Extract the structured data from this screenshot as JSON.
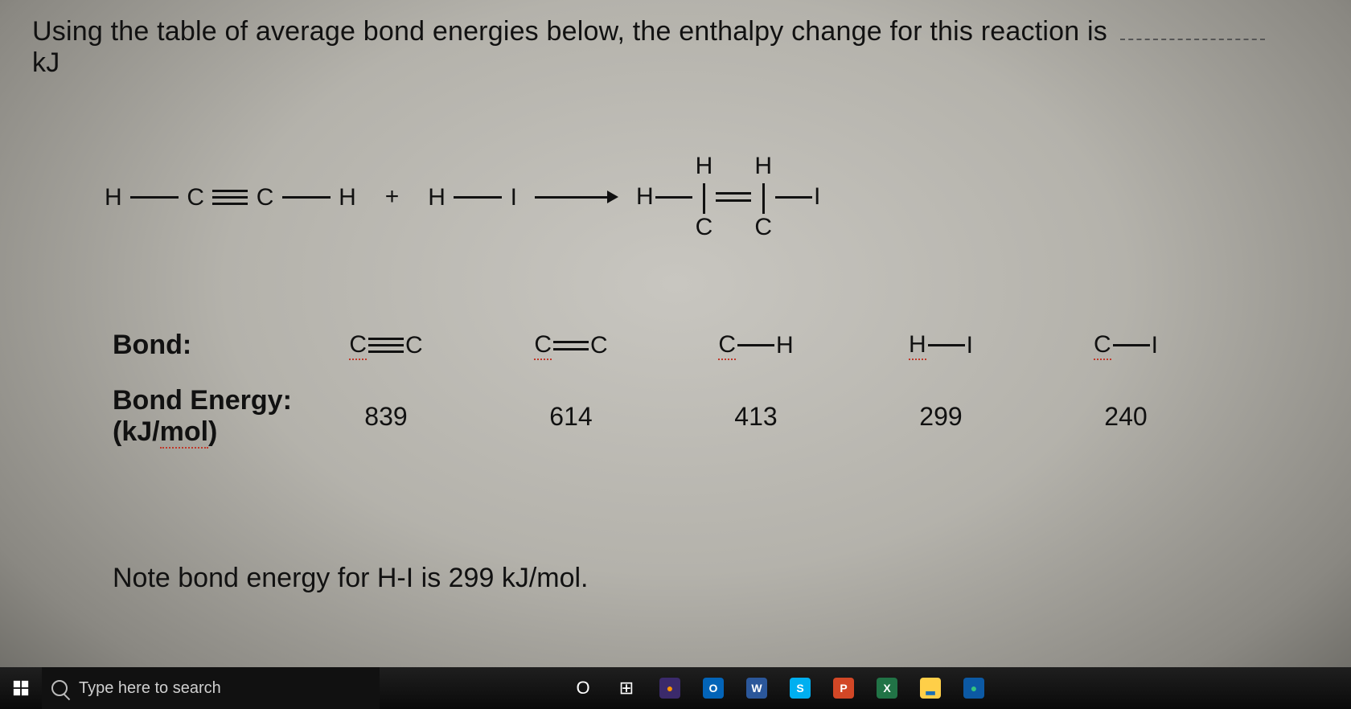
{
  "question": {
    "prefix": "Using the table of average bond energies below, the enthalpy change for this reaction is",
    "unit": "kJ"
  },
  "reaction": {
    "reactant1": {
      "a1": "H",
      "a2": "C",
      "a3": "C",
      "a4": "H",
      "bond_center": "triple"
    },
    "plus": "+",
    "reactant2": {
      "a1": "H",
      "a2": "I"
    },
    "product": {
      "left": "H",
      "c1_top": "H",
      "c2_top": "H",
      "right": "I",
      "center_bond": "double"
    }
  },
  "table": {
    "row1_label": "Bond:",
    "row2_label_line1": "Bond Energy:",
    "row2_label_line2": "(kJ/mol)",
    "bonds": [
      {
        "left": "C",
        "right": "C",
        "type": "triple"
      },
      {
        "left": "C",
        "right": "C",
        "type": "double"
      },
      {
        "left": "C",
        "right": "H",
        "type": "single"
      },
      {
        "left": "H",
        "right": "I",
        "type": "single"
      },
      {
        "left": "C",
        "right": "I",
        "type": "single"
      }
    ],
    "energies": [
      "839",
      "614",
      "413",
      "299",
      "240"
    ]
  },
  "note": "Note bond energy for H-I is 299 kJ/mol.",
  "taskbar": {
    "search_placeholder": "Type here to search",
    "icons": [
      {
        "name": "cortana-circle",
        "bg": "transparent",
        "fg": "#ffffff",
        "glyph": "O"
      },
      {
        "name": "task-view",
        "bg": "transparent",
        "fg": "#ffffff",
        "glyph": "⊞"
      },
      {
        "name": "firefox",
        "bg": "#3b2a6b",
        "fg": "#ff9500",
        "glyph": "●"
      },
      {
        "name": "outlook",
        "bg": "#0364b8",
        "fg": "#ffffff",
        "glyph": "O"
      },
      {
        "name": "word",
        "bg": "#2b579a",
        "fg": "#ffffff",
        "glyph": "W"
      },
      {
        "name": "skype",
        "bg": "#00aff0",
        "fg": "#ffffff",
        "glyph": "S"
      },
      {
        "name": "powerpoint",
        "bg": "#d24726",
        "fg": "#ffffff",
        "glyph": "P"
      },
      {
        "name": "excel",
        "bg": "#217346",
        "fg": "#ffffff",
        "glyph": "X"
      },
      {
        "name": "explorer",
        "bg": "#ffcf48",
        "fg": "#1b6fb5",
        "glyph": "▂"
      },
      {
        "name": "edge",
        "bg": "#0c59a4",
        "fg": "#33c481",
        "glyph": "●"
      }
    ]
  },
  "colors": {
    "text": "#111111",
    "underline_red": "#c0392b",
    "taskbar_bg": "#0a0a0a"
  }
}
